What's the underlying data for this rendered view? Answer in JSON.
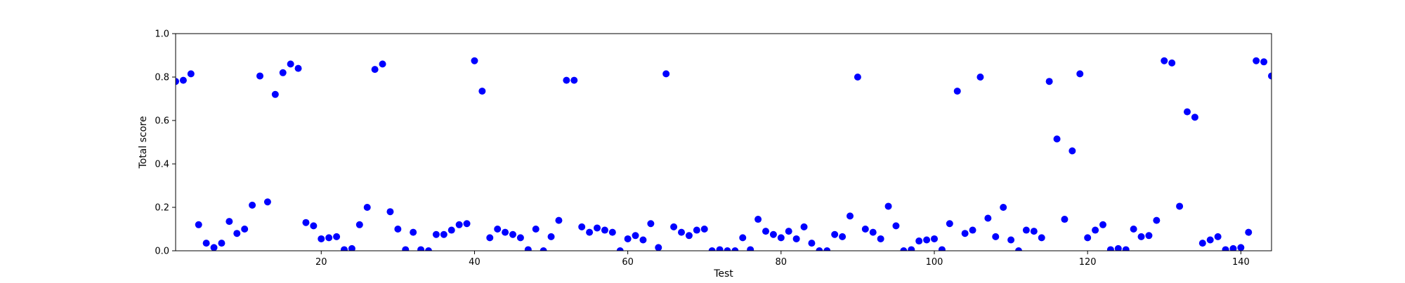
{
  "chart_data": {
    "type": "scatter",
    "title": "",
    "xlabel": "Test",
    "ylabel": "Total score",
    "xlim": [
      1,
      144
    ],
    "ylim": [
      0.0,
      1.0
    ],
    "x_ticks": [
      20,
      40,
      60,
      80,
      100,
      120,
      140
    ],
    "x_tick_labels": [
      "20",
      "40",
      "60",
      "80",
      "100",
      "120",
      "140"
    ],
    "y_ticks": [
      0.0,
      0.2,
      0.4,
      0.6,
      0.8,
      1.0
    ],
    "y_tick_labels": [
      "0.0",
      "0.2",
      "0.4",
      "0.6",
      "0.8",
      "1.0"
    ],
    "grid": false,
    "legend": false,
    "marker_color": "#0000ff",
    "series": [
      {
        "x": [
          1,
          2,
          3,
          4,
          5,
          6,
          7,
          8,
          9,
          10,
          11,
          12,
          13,
          14,
          15,
          16,
          17,
          18,
          19,
          20,
          21,
          22,
          23,
          24,
          25,
          26,
          27,
          28,
          29,
          30,
          31,
          32,
          33,
          34,
          35,
          36,
          37,
          38,
          39,
          40,
          41,
          42,
          43,
          44,
          45,
          46,
          47,
          48,
          49,
          50,
          51,
          52,
          53,
          54,
          55,
          56,
          57,
          58,
          59,
          60,
          61,
          62,
          63,
          64,
          65,
          66,
          67,
          68,
          69,
          70,
          71,
          72,
          73,
          74,
          75,
          76,
          77,
          78,
          79,
          80,
          81,
          82,
          83,
          84,
          85,
          86,
          87,
          88,
          89,
          90,
          91,
          92,
          93,
          94,
          95,
          96,
          97,
          98,
          99,
          100,
          101,
          102,
          103,
          104,
          105,
          106,
          107,
          108,
          109,
          110,
          111,
          112,
          113,
          114,
          115,
          116,
          117,
          118,
          119,
          120,
          121,
          122,
          123,
          124,
          125,
          126,
          127,
          128,
          129,
          130,
          131,
          132,
          133,
          134,
          135,
          136,
          137,
          138,
          139,
          140,
          141,
          142,
          143,
          144
        ],
        "y": [
          0.78,
          0.785,
          0.815,
          0.12,
          0.035,
          0.015,
          0.035,
          0.135,
          0.08,
          0.1,
          0.21,
          0.805,
          0.225,
          0.72,
          0.82,
          0.86,
          0.84,
          0.13,
          0.115,
          0.055,
          0.06,
          0.065,
          0.005,
          0.01,
          0.12,
          0.2,
          0.835,
          0.86,
          0.18,
          0.1,
          0.005,
          0.085,
          0.005,
          0.0,
          0.075,
          0.075,
          0.095,
          0.12,
          0.125,
          0.875,
          0.735,
          0.06,
          0.1,
          0.085,
          0.075,
          0.06,
          0.005,
          0.1,
          0.0,
          0.065,
          0.14,
          0.785,
          0.785,
          0.11,
          0.085,
          0.105,
          0.095,
          0.085,
          0.0,
          0.055,
          0.07,
          0.05,
          0.125,
          0.015,
          0.815,
          0.11,
          0.085,
          0.07,
          0.095,
          0.1,
          0.0,
          0.005,
          0.0,
          0.0,
          0.06,
          0.005,
          0.145,
          0.09,
          0.075,
          0.06,
          0.09,
          0.055,
          0.11,
          0.035,
          0.0,
          0.0,
          0.075,
          0.065,
          0.16,
          0.8,
          0.1,
          0.085,
          0.055,
          0.205,
          0.115,
          0.0,
          0.005,
          0.045,
          0.05,
          0.055,
          0.005,
          0.125,
          0.735,
          0.08,
          0.095,
          0.8,
          0.15,
          0.065,
          0.2,
          0.05,
          0.0,
          0.095,
          0.09,
          0.06,
          0.78,
          0.515,
          0.145,
          0.46,
          0.815,
          0.06,
          0.095,
          0.12,
          0.005,
          0.01,
          0.005,
          0.1,
          0.065,
          0.07,
          0.14,
          0.875,
          0.865,
          0.205,
          0.64,
          0.615,
          0.035,
          0.05,
          0.065,
          0.005,
          0.01,
          0.015,
          0.085,
          0.875,
          0.87,
          0.805
        ]
      }
    ]
  }
}
